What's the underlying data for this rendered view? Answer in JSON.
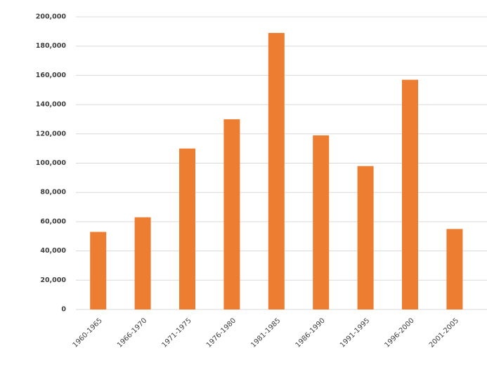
{
  "chart_data": {
    "type": "bar",
    "categories": [
      "1960-1965",
      "1966-1970",
      "1971-1975",
      "1976-1980",
      "1981-1985",
      "1986-1990",
      "1991-1995",
      "1996-2000",
      "2001-2005"
    ],
    "values": [
      53000,
      63000,
      110000,
      130000,
      189000,
      119000,
      98000,
      157000,
      55000
    ],
    "color": "#ed7d31",
    "ylim": [
      0,
      200000
    ],
    "yticks": [
      0,
      {
        "value": 20000,
        "label": "20,000"
      },
      {
        "value": 40000,
        "label": "40,000"
      },
      {
        "value": 60000,
        "label": "60,000"
      },
      {
        "value": 80000,
        "label": "80,000"
      },
      {
        "value": 100000,
        "label": "100,000"
      },
      {
        "value": 120000,
        "label": "120,000"
      },
      {
        "value": 140000,
        "label": "140,000"
      },
      {
        "value": 160000,
        "label": "160,000"
      },
      {
        "value": 180000,
        "label": "180,000"
      },
      {
        "value": 200000,
        "label": "200,000"
      }
    ],
    "grid": true
  }
}
